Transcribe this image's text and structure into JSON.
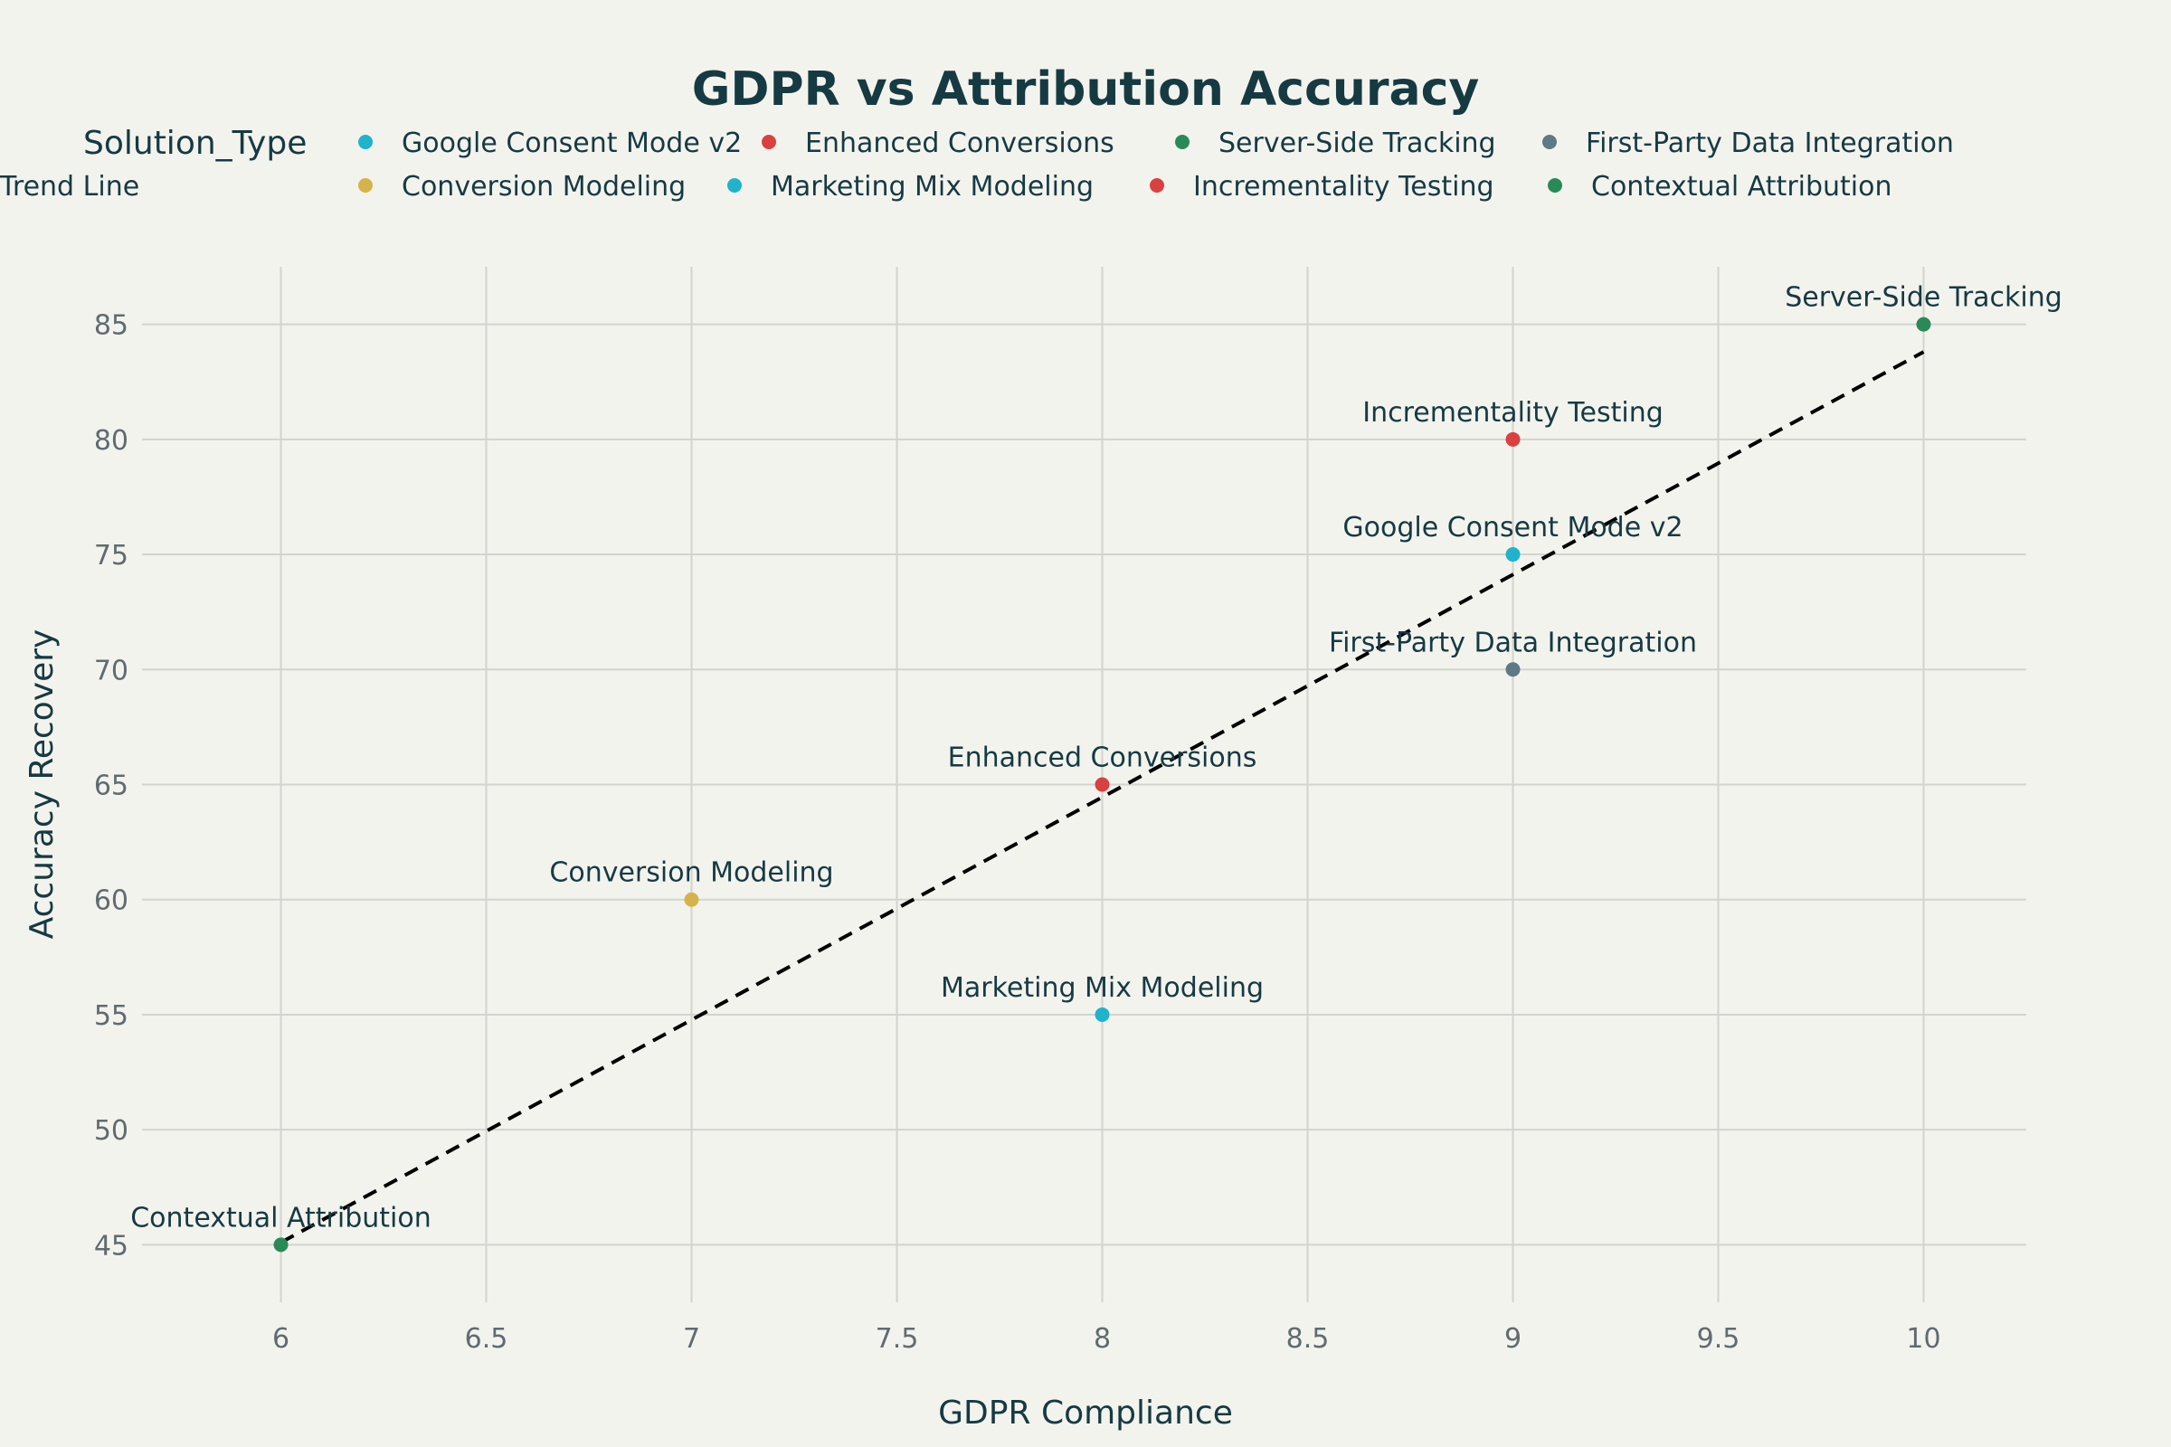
{
  "chart_data": {
    "type": "scatter",
    "title": "GDPR vs Attribution Accuracy",
    "xlabel": "GDPR Compliance",
    "ylabel": "Accuracy Recovery",
    "xlim": [
      5.75,
      10.25
    ],
    "ylim": [
      42.5,
      87.5
    ],
    "xticks": [
      6,
      6.5,
      7,
      7.5,
      8,
      8.5,
      9,
      9.5,
      10
    ],
    "xtick_labels": [
      "6",
      "6.5",
      "7",
      "7.5",
      "8",
      "8.5",
      "9",
      "9.5",
      "10"
    ],
    "yticks": [
      45,
      50,
      55,
      60,
      65,
      70,
      75,
      80,
      85
    ],
    "ytick_labels": [
      "45",
      "50",
      "55",
      "60",
      "65",
      "70",
      "75",
      "80",
      "85"
    ],
    "grid": true,
    "legend_title": "Solution_Type",
    "legend_position": "top",
    "series": [
      {
        "name": "Google Consent Mode v2",
        "color": "#1fb3cc",
        "x": [
          9
        ],
        "y": [
          75
        ],
        "label": "Google Consent Mode v2"
      },
      {
        "name": "Enhanced Conversions",
        "color": "#d94141",
        "x": [
          8
        ],
        "y": [
          65
        ],
        "label": "Enhanced Conversions"
      },
      {
        "name": "Server-Side Tracking",
        "color": "#2a8a57",
        "x": [
          10
        ],
        "y": [
          85
        ],
        "label": "Server-Side Tracking"
      },
      {
        "name": "First-Party Data Integration",
        "color": "#5d7a86",
        "x": [
          9
        ],
        "y": [
          70
        ],
        "label": "First-Party Data Integration"
      },
      {
        "name": "Conversion Modeling",
        "color": "#d4b44a",
        "x": [
          7
        ],
        "y": [
          60
        ],
        "label": "Conversion Modeling"
      },
      {
        "name": "Marketing Mix Modeling",
        "color": "#1fb3cc",
        "x": [
          8
        ],
        "y": [
          55
        ],
        "label": "Marketing Mix Modeling"
      },
      {
        "name": "Incrementality Testing",
        "color": "#d94141",
        "x": [
          9
        ],
        "y": [
          80
        ],
        "label": "Incrementality Testing"
      },
      {
        "name": "Contextual Attribution",
        "color": "#2a8a57",
        "x": [
          6
        ],
        "y": [
          45
        ],
        "label": "Contextual Attribution"
      }
    ],
    "trend_line": {
      "name": "Trend Line",
      "color": "#000000",
      "x": [
        6,
        10
      ],
      "y": [
        45.1,
        83.8
      ]
    }
  }
}
